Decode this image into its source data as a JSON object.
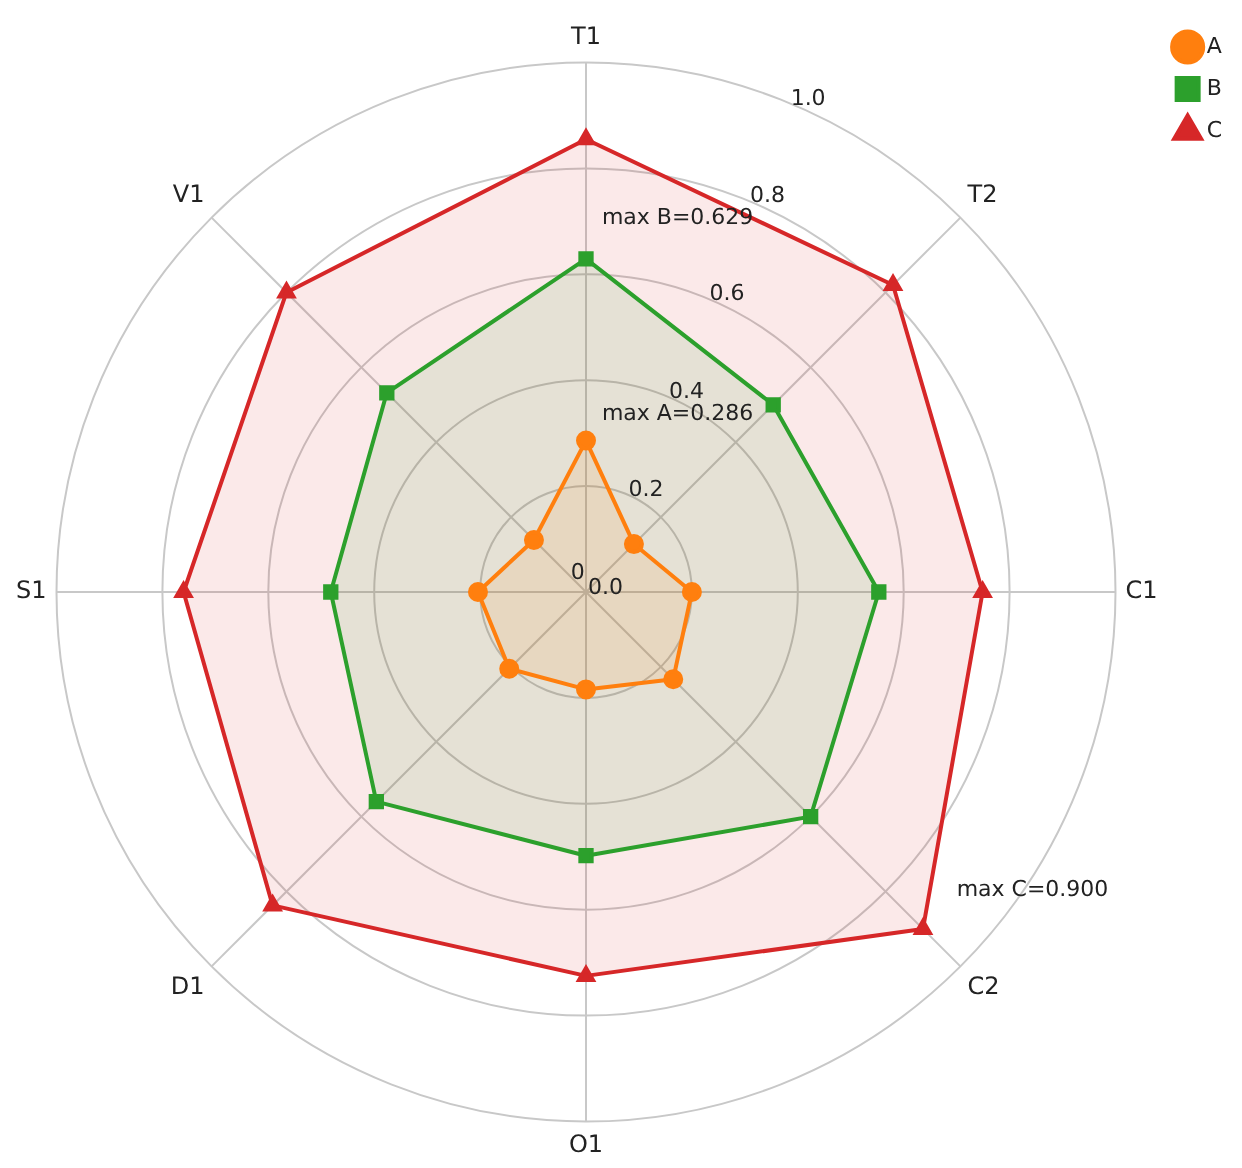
{
  "chart_data": {
    "type": "radar",
    "categories": [
      "T1",
      "T2",
      "C1",
      "C2",
      "O1",
      "D1",
      "S1",
      "V1"
    ],
    "series": [
      {
        "name": "A",
        "color": "#ff7f0e",
        "marker": "circle",
        "values": [
          0.286,
          0.128,
          0.2,
          0.233,
          0.184,
          0.205,
          0.204,
          0.139
        ]
      },
      {
        "name": "B",
        "color": "#2ca02c",
        "marker": "square",
        "values": [
          0.629,
          0.5,
          0.553,
          0.6,
          0.498,
          0.56,
          0.482,
          0.532
        ]
      },
      {
        "name": "C",
        "color": "#d62728",
        "marker": "triangle",
        "values": [
          0.855,
          0.82,
          0.749,
          0.9,
          0.725,
          0.837,
          0.76,
          0.8
        ]
      }
    ],
    "ylim": [
      0,
      1
    ],
    "yticks": [
      {
        "value": 0,
        "label": "0.0"
      },
      {
        "value": 0.2,
        "label": "0.2"
      },
      {
        "value": 0.4,
        "label": "0.4"
      },
      {
        "value": 0.6,
        "label": "0.6"
      },
      {
        "value": 0.8,
        "label": "0.8"
      },
      {
        "value": 1,
        "label": "1.0"
      }
    ],
    "grid": true,
    "legend": "top right",
    "annotations": [
      "max A=0.286",
      "max B=0.629",
      "max C=0.900",
      "0"
    ]
  }
}
